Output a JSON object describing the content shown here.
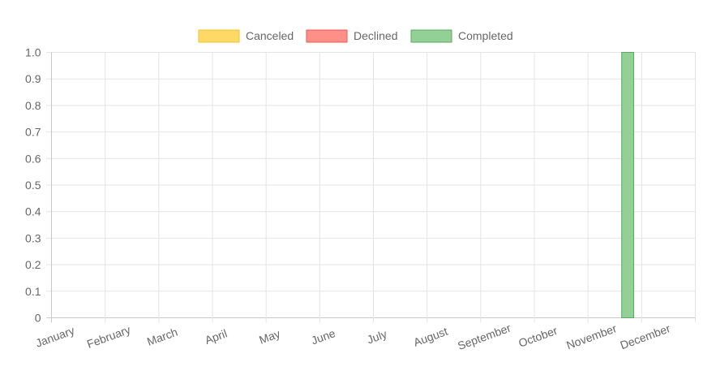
{
  "chart_data": {
    "type": "bar",
    "title": "",
    "xlabel": "",
    "ylabel": "",
    "categories": [
      "January",
      "February",
      "March",
      "April",
      "May",
      "June",
      "July",
      "August",
      "September",
      "October",
      "November",
      "December"
    ],
    "ylim": [
      0,
      1.0
    ],
    "yticks": [
      "1.0",
      "0.9",
      "0.8",
      "0.7",
      "0.6",
      "0.5",
      "0.4",
      "0.3",
      "0.2",
      "0.1",
      "0"
    ],
    "ytick_values": [
      1.0,
      0.9,
      0.8,
      0.7,
      0.6,
      0.5,
      0.4,
      0.3,
      0.2,
      0.1,
      0
    ],
    "grid": true,
    "legend_position": "top-center",
    "series": [
      {
        "name": "Canceled",
        "values": [
          0,
          0,
          0,
          0,
          0,
          0,
          0,
          0,
          0,
          0,
          0,
          0
        ],
        "fill": "#ffd966",
        "stroke": "#f2c12e"
      },
      {
        "name": "Declined",
        "values": [
          0,
          0,
          0,
          0,
          0,
          0,
          0,
          0,
          0,
          0,
          0,
          0
        ],
        "fill": "#ff8f87",
        "stroke": "#e85a55"
      },
      {
        "name": "Completed",
        "values": [
          0,
          0,
          0,
          0,
          0,
          0,
          0,
          0,
          0,
          0,
          1,
          0
        ],
        "fill": "#93d095",
        "stroke": "#5aa85e"
      }
    ]
  }
}
